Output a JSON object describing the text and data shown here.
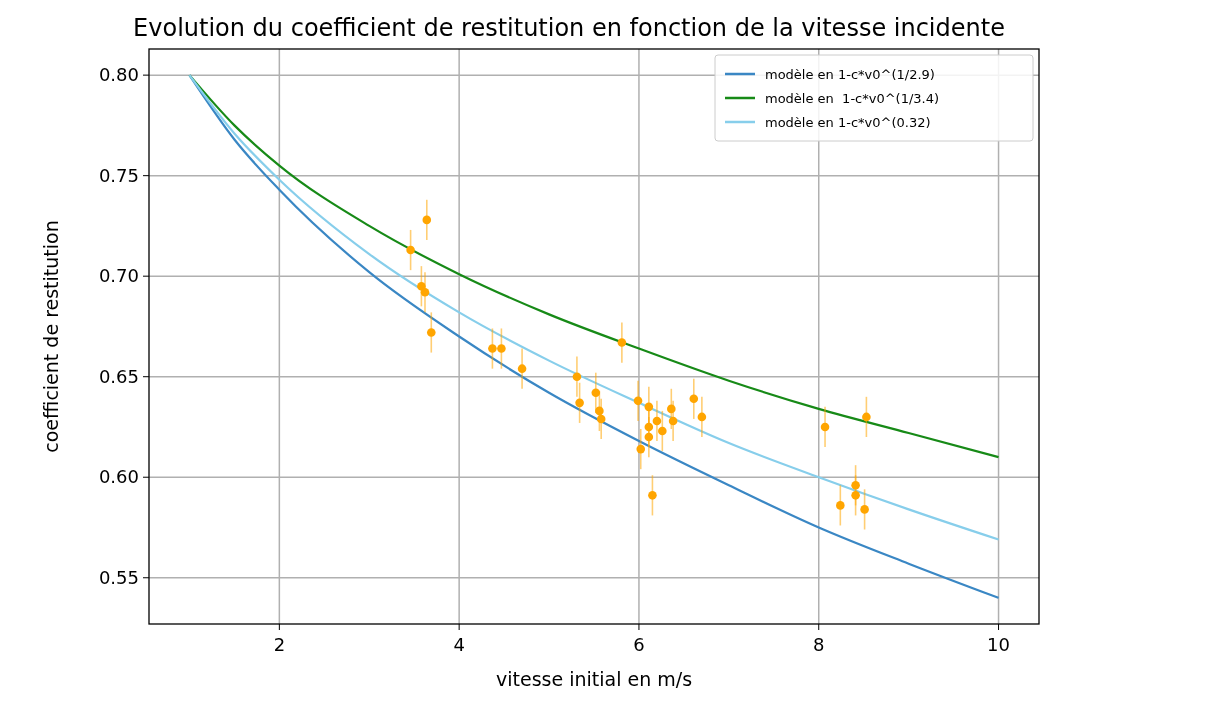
{
  "chart_data": {
    "type": "line",
    "title": "Evolution du coefficient de restitution en fonction de la vitesse incidente",
    "xlabel": "vitesse initial en m/s",
    "ylabel": "coefficient de restitution",
    "xlim": [
      0.55,
      10.45
    ],
    "ylim": [
      0.527,
      0.813
    ],
    "xticks": [
      2,
      4,
      6,
      8,
      10
    ],
    "yticks": [
      0.55,
      {
        "value": 0.6,
        "label": "0.60"
      },
      0.65,
      {
        "value": 0.7,
        "label": "0.70"
      },
      0.75,
      {
        "value": 0.8,
        "label": "0.80"
      }
    ],
    "grid": true,
    "legend": "top right",
    "marker": "none",
    "line_style": "solid",
    "series": [
      {
        "name": "modèle en 1-c*v0^(1/2.9)",
        "color": "#3a87c4",
        "x": [
          1,
          1.5,
          2,
          3,
          4,
          5,
          6,
          7,
          8,
          9,
          10
        ],
        "values": [
          0.8,
          0.768,
          0.743,
          0.702,
          0.67,
          0.642,
          0.618,
          0.596,
          0.575,
          0.557,
          0.54
        ]
      },
      {
        "name": "modèle en  1-c*v0^(1/3.4)",
        "color": "#178a17",
        "x": [
          1,
          1.5,
          2,
          3,
          4,
          5,
          6,
          7,
          8,
          9,
          10
        ],
        "values": [
          0.8,
          0.775,
          0.755,
          0.725,
          0.701,
          0.681,
          0.664,
          0.648,
          0.634,
          0.622,
          0.61
        ]
      },
      {
        "name": "modèle en 1-c*v0^(0.32)",
        "color": "#87ceeb",
        "x": [
          1,
          1.5,
          2,
          3,
          4,
          5,
          6,
          7,
          8,
          9,
          10
        ],
        "values": [
          0.8,
          0.771,
          0.748,
          0.711,
          0.682,
          0.658,
          0.637,
          0.617,
          0.6,
          0.584,
          0.569
        ]
      },
      {
        "type": "scatter",
        "marker": "circle",
        "color": "#ffa500",
        "x": [
          3.46,
          3.64,
          3.58,
          3.62,
          3.69,
          4.37,
          4.47,
          4.7,
          5.31,
          5.34,
          5.52,
          5.56,
          5.58,
          5.81,
          5.99,
          6.11,
          6.02,
          6.11,
          6.11,
          6.2,
          6.26,
          6.36,
          6.38,
          6.15,
          6.61,
          6.7,
          8.07,
          8.53,
          8.24,
          8.41,
          8.41,
          8.51
        ],
        "values": [
          0.713,
          0.728,
          0.695,
          0.692,
          0.672,
          0.664,
          0.664,
          0.654,
          0.65,
          0.637,
          0.642,
          0.633,
          0.629,
          0.667,
          0.638,
          0.635,
          0.614,
          0.62,
          0.625,
          0.628,
          0.623,
          0.634,
          0.628,
          0.591,
          0.639,
          0.63,
          0.625,
          0.63,
          0.586,
          0.596,
          0.591,
          0.584
        ],
        "errors": [
          0.01,
          0.01,
          0.01,
          0.01,
          0.01,
          0.01,
          0.01,
          0.01,
          0.01,
          0.01,
          0.01,
          0.01,
          0.01,
          0.01,
          0.01,
          0.01,
          0.01,
          0.01,
          0.01,
          0.01,
          0.01,
          0.01,
          0.01,
          0.01,
          0.01,
          0.01,
          0.01,
          0.01,
          0.01,
          0.01,
          0.01,
          0.01
        ]
      }
    ]
  }
}
